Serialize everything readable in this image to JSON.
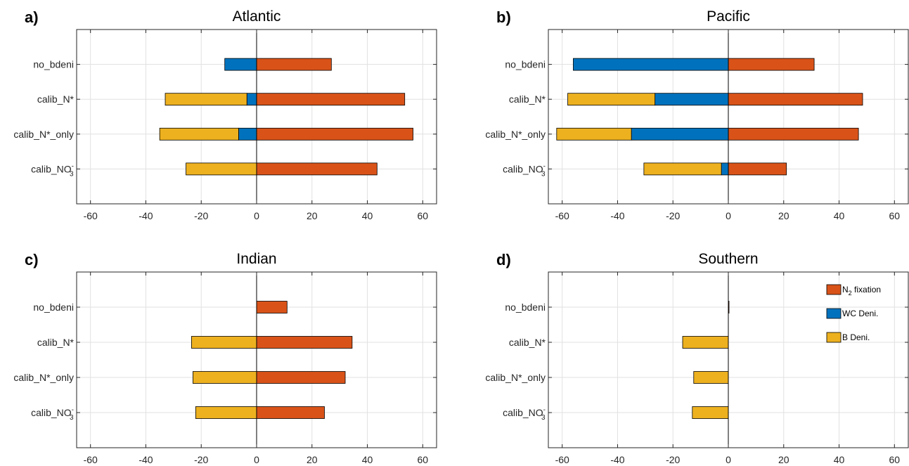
{
  "colors": {
    "n2_fixation": "#D95319",
    "wc_deni": "#0072BD",
    "b_deni": "#EDB120",
    "grid": "#e1e1e1",
    "axis": "#262626"
  },
  "chart_data": [
    {
      "type": "bar",
      "orientation": "horizontal",
      "stacked": true,
      "panel": "a)",
      "title": "Atlantic",
      "categories": [
        "no_bdeni",
        "calib_N*",
        "calib_N*_only",
        "calib_NO3-"
      ],
      "category_labels": [
        {
          "main": "no_bdeni"
        },
        {
          "main": "calib_N*"
        },
        {
          "main": "calib_N*_only"
        },
        {
          "main": "calib_NO",
          "sub": "3",
          "sup": "-"
        }
      ],
      "xlim": [
        -65,
        65
      ],
      "xticks": [
        -60,
        -40,
        -20,
        0,
        20,
        40,
        60
      ],
      "grid": true,
      "series": [
        {
          "name": "N2 fixation",
          "values": [
            27,
            53.5,
            56.5,
            43.5
          ]
        },
        {
          "name": "WC Deni.",
          "values": [
            -11.5,
            -3.5,
            -6.5,
            0
          ]
        },
        {
          "name": "B Deni.",
          "values": [
            0,
            -29.5,
            -28.5,
            -25.5
          ]
        }
      ]
    },
    {
      "type": "bar",
      "orientation": "horizontal",
      "stacked": true,
      "panel": "b)",
      "title": "Pacific",
      "categories": [
        "no_bdeni",
        "calib_N*",
        "calib_N*_only",
        "calib_NO3-"
      ],
      "category_labels": [
        {
          "main": "no_bdeni"
        },
        {
          "main": "calib_N*"
        },
        {
          "main": "calib_N*_only"
        },
        {
          "main": "calib_NO",
          "sub": "3",
          "sup": "-"
        }
      ],
      "xlim": [
        -65,
        65
      ],
      "xticks": [
        -60,
        -40,
        -20,
        0,
        20,
        40,
        60
      ],
      "grid": true,
      "series": [
        {
          "name": "N2 fixation",
          "values": [
            31,
            48.5,
            47,
            21
          ]
        },
        {
          "name": "WC Deni.",
          "values": [
            -56,
            -26.5,
            -35,
            -2.5
          ]
        },
        {
          "name": "B Deni.",
          "values": [
            0,
            -31.5,
            -27,
            -28
          ]
        }
      ]
    },
    {
      "type": "bar",
      "orientation": "horizontal",
      "stacked": true,
      "panel": "c)",
      "title": "Indian",
      "categories": [
        "no_bdeni",
        "calib_N*",
        "calib_N*_only",
        "calib_NO3-"
      ],
      "category_labels": [
        {
          "main": "no_bdeni"
        },
        {
          "main": "calib_N*"
        },
        {
          "main": "calib_N*_only"
        },
        {
          "main": "calib_NO",
          "sub": "3",
          "sup": "-"
        }
      ],
      "xlim": [
        -65,
        65
      ],
      "xticks": [
        -60,
        -40,
        -20,
        0,
        20,
        40,
        60
      ],
      "grid": true,
      "series": [
        {
          "name": "N2 fixation",
          "values": [
            11,
            34.5,
            32,
            24.5
          ]
        },
        {
          "name": "WC Deni.",
          "values": [
            0,
            0,
            0,
            0
          ]
        },
        {
          "name": "B Deni.",
          "values": [
            0,
            -23.5,
            -23,
            -22
          ]
        }
      ]
    },
    {
      "type": "bar",
      "orientation": "horizontal",
      "stacked": true,
      "panel": "d)",
      "title": "Southern",
      "categories": [
        "no_bdeni",
        "calib_N*",
        "calib_N*_only",
        "calib_NO3-"
      ],
      "category_labels": [
        {
          "main": "no_bdeni"
        },
        {
          "main": "calib_N*"
        },
        {
          "main": "calib_N*_only"
        },
        {
          "main": "calib_NO",
          "sub": "3",
          "sup": "-"
        }
      ],
      "xlim": [
        -65,
        65
      ],
      "xticks": [
        -60,
        -40,
        -20,
        0,
        20,
        40,
        60
      ],
      "grid": true,
      "legend": {
        "placement": "top-right",
        "entries": [
          {
            "key": "n2_fixation",
            "main": "N",
            "sub": "2",
            "rest": " fixation"
          },
          {
            "key": "wc_deni",
            "main": "WC Deni."
          },
          {
            "key": "b_deni",
            "main": "B Deni."
          }
        ]
      },
      "series": [
        {
          "name": "N2 fixation",
          "values": [
            0.2,
            0,
            0,
            0
          ]
        },
        {
          "name": "WC Deni.",
          "values": [
            0,
            0,
            0,
            0
          ]
        },
        {
          "name": "B Deni.",
          "values": [
            0,
            -16.5,
            -12.5,
            -13
          ]
        }
      ]
    }
  ]
}
